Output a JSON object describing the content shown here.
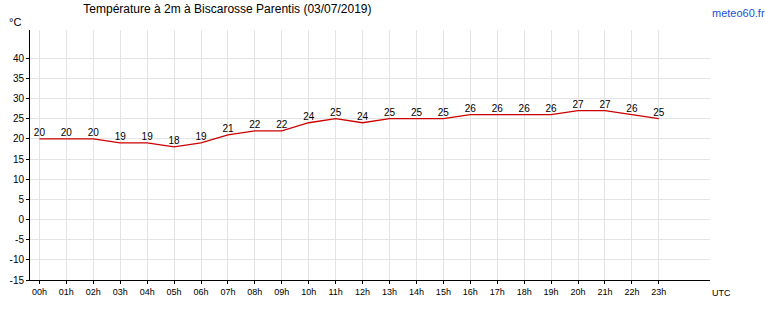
{
  "chart_data": {
    "type": "line",
    "title": "Température à 2m à Biscarosse Parentis (03/07/2019)",
    "source": "meteo60.fr",
    "y_label": "°C",
    "x_label": "UTC",
    "categories": [
      "00h",
      "01h",
      "02h",
      "03h",
      "04h",
      "05h",
      "06h",
      "07h",
      "08h",
      "09h",
      "10h",
      "11h",
      "12h",
      "13h",
      "14h",
      "15h",
      "16h",
      "17h",
      "18h",
      "19h",
      "20h",
      "21h",
      "22h",
      "23h"
    ],
    "values": [
      20,
      20,
      20,
      19,
      19,
      18,
      19,
      21,
      22,
      22,
      24,
      25,
      24,
      25,
      25,
      25,
      26,
      26,
      26,
      26,
      27,
      27,
      26,
      25
    ],
    "color": "#cc0000",
    "ylim": [
      -15,
      47
    ],
    "yticks": [
      -15,
      -10,
      -5,
      0,
      5,
      10,
      15,
      20,
      25,
      30,
      35,
      40
    ],
    "grid": true,
    "data_labels": true,
    "marker": "none",
    "line_style": "solid"
  }
}
